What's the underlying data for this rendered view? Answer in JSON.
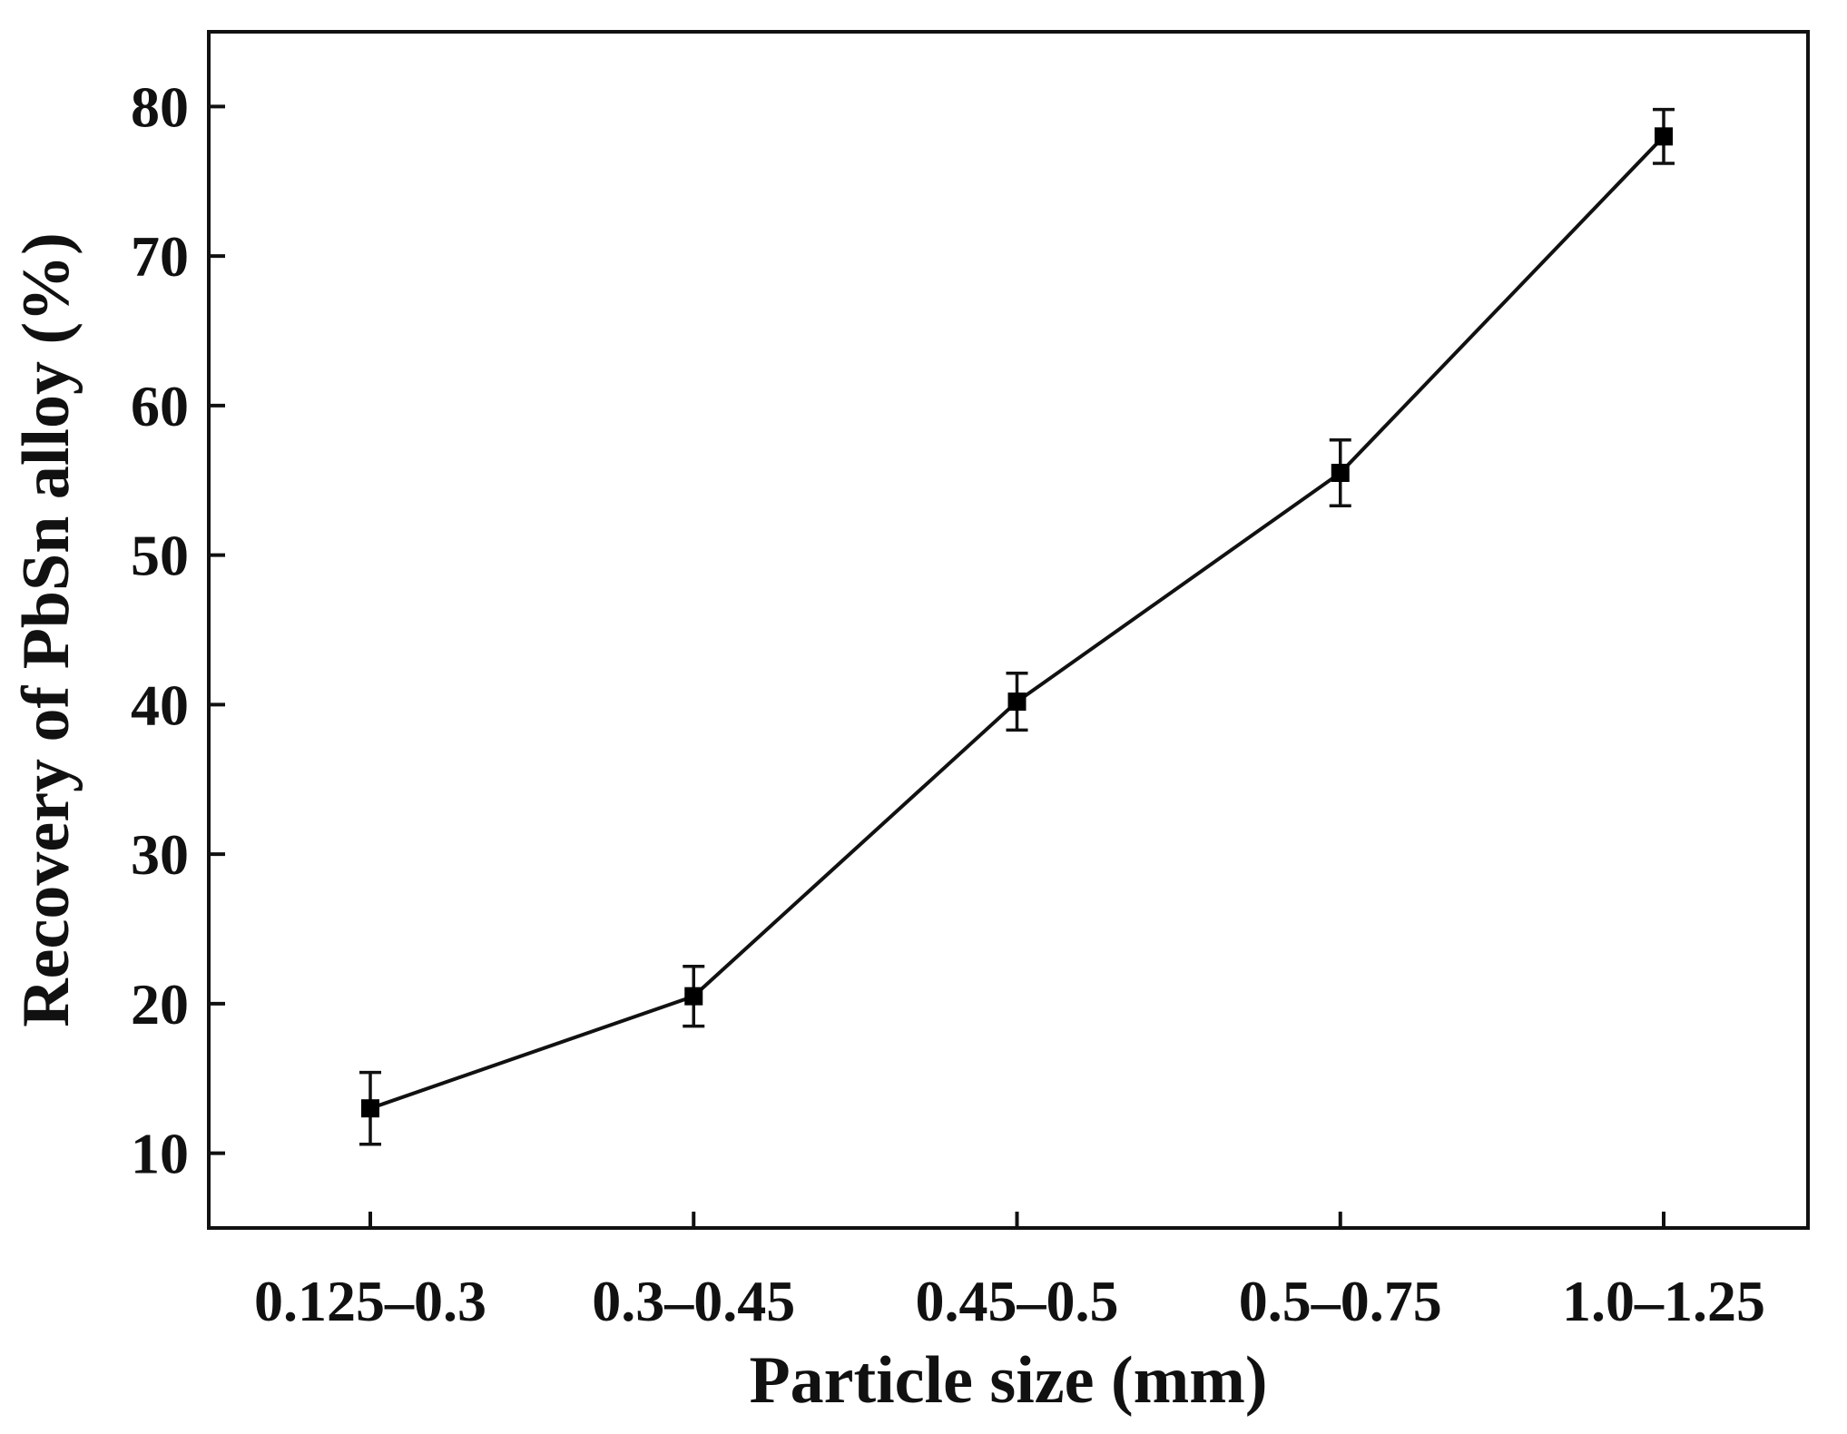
{
  "chart_data": {
    "type": "line",
    "title": "",
    "xlabel": "Particle size (mm)",
    "ylabel": "Recovery of PbSn alloy (%)",
    "categories": [
      "0.125–0.3",
      "0.3–0.45",
      "0.45–0.5",
      "0.5–0.75",
      "1.0–1.25"
    ],
    "series": [
      {
        "values": [
          13.0,
          20.5,
          40.2,
          55.5,
          78.0
        ],
        "errors": [
          2.4,
          2.0,
          1.9,
          2.2,
          1.8
        ],
        "marker": "square",
        "color": "#000000"
      }
    ],
    "ylim": [
      5,
      85
    ],
    "yticks": [
      10,
      20,
      30,
      40,
      50,
      60,
      70,
      80
    ],
    "grid": false,
    "legend": "none"
  }
}
